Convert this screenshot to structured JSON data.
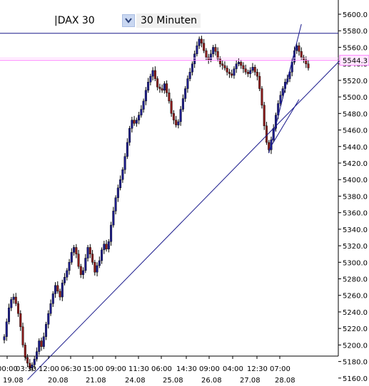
{
  "toolbar": {
    "symbol": "|DAX 30",
    "interval": "30 Minuten",
    "dropdown_icon": "chevron-down-icon"
  },
  "colors": {
    "up_body": "#1c1c8c",
    "down_body": "#8b1a1a",
    "trendline": "#1a1a8c",
    "resistance_line": "#1a1a8c",
    "price_line": "#ff80ff",
    "price_label_bg": "#ffe8ff"
  },
  "chart_data": {
    "type": "candlestick",
    "title": "DAX 30",
    "interval": "30 Minuten",
    "ylim": [
      5140,
      5610
    ],
    "y_ticks": [
      5160,
      5180,
      5200,
      5220,
      5240,
      5260,
      5280,
      5300,
      5320,
      5340,
      5360,
      5380,
      5400,
      5420,
      5440,
      5460,
      5480,
      5500,
      5520,
      5540,
      5560,
      5580,
      5600
    ],
    "y_tick_labels": [
      "5160.0",
      "5180.0",
      "5200.0",
      "5220.0",
      "5240.0",
      "5260.0",
      "5280.0",
      "5300.0",
      "5320.0",
      "5340.0",
      "5360.0",
      "5380.0",
      "5400.0",
      "5420.0",
      "5440.0",
      "5460.0",
      "5480.0",
      "5500.0",
      "5520.0",
      "5540.0",
      "5560.0",
      "5580.0",
      "5600.0"
    ],
    "x_time_labels": [
      "00:00",
      "03:30",
      "12:00",
      "06:30",
      "15:00",
      "09:00",
      "11:30",
      "06:00",
      "14:30",
      "09:00",
      "04:00",
      "12:30",
      "07:00"
    ],
    "x_date_labels": [
      "19.08",
      "20.08",
      "21.08",
      "24.08",
      "25.08",
      "26.08",
      "27.08",
      "28.08"
    ],
    "close_series": [
      5210,
      5228,
      5245,
      5255,
      5258,
      5250,
      5238,
      5222,
      5200,
      5185,
      5178,
      5172,
      5176,
      5183,
      5192,
      5205,
      5198,
      5210,
      5225,
      5238,
      5250,
      5262,
      5272,
      5265,
      5258,
      5275,
      5282,
      5290,
      5300,
      5312,
      5318,
      5310,
      5295,
      5285,
      5290,
      5305,
      5318,
      5310,
      5300,
      5288,
      5296,
      5302,
      5315,
      5322,
      5316,
      5325,
      5345,
      5362,
      5378,
      5390,
      5400,
      5412,
      5428,
      5445,
      5462,
      5472,
      5468,
      5472,
      5478,
      5485,
      5495,
      5508,
      5518,
      5525,
      5532,
      5522,
      5512,
      5510,
      5508,
      5516,
      5505,
      5495,
      5480,
      5472,
      5466,
      5470,
      5485,
      5498,
      5510,
      5522,
      5530,
      5540,
      5552,
      5562,
      5570,
      5565,
      5556,
      5548,
      5545,
      5552,
      5560,
      5555,
      5546,
      5540,
      5538,
      5535,
      5530,
      5528,
      5526,
      5534,
      5540,
      5542,
      5538,
      5534,
      5530,
      5528,
      5532,
      5536,
      5530,
      5525,
      5510,
      5490,
      5465,
      5445,
      5436,
      5448,
      5462,
      5478,
      5492,
      5502,
      5510,
      5518,
      5522,
      5530,
      5542,
      5556,
      5562,
      5555,
      5548,
      5545,
      5540,
      5535
    ],
    "price_line": 5544.3,
    "price_label": "5544.3",
    "resistance_level": 5577,
    "trendlines": [
      {
        "from": {
          "i": 10,
          "v": 5158
        },
        "to": {
          "i": 131,
          "v": 5505
        }
      },
      {
        "from": {
          "i": 114,
          "v": 5432
        },
        "to": {
          "i": 128,
          "v": 5588
        }
      },
      {
        "from": {
          "i": 114,
          "v": 5436
        },
        "to": {
          "i": 127,
          "v": 5497
        }
      }
    ]
  }
}
